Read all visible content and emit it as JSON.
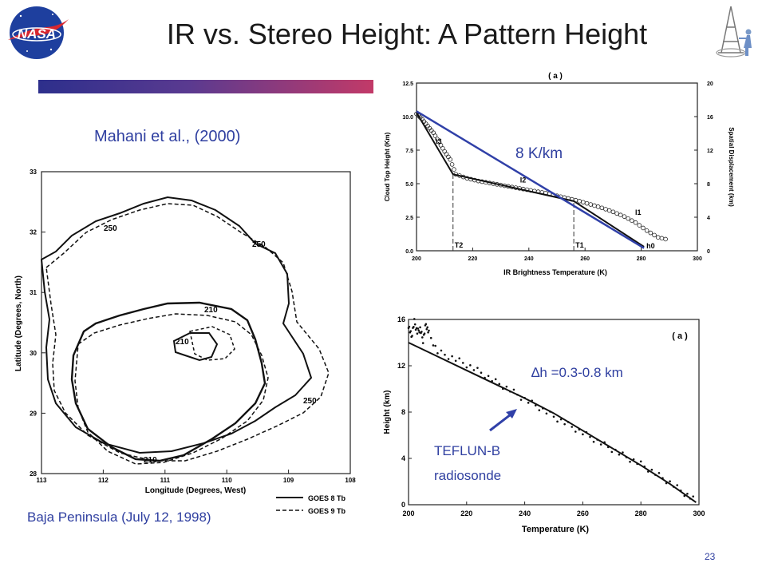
{
  "slide": {
    "title": "IR vs. Stereo Height: A Pattern Height",
    "citation": "Mahani et al., (2000)",
    "caption": "Baja Peninsula (July 12, 1998)",
    "page_number": "23",
    "logo_text": "NASA",
    "accent_color": "#2f3fa0"
  },
  "chart_data": [
    {
      "type": "line",
      "panel_label": "( a )",
      "xlabel": "IR Brightness Temperature (K)",
      "ylabel": "Cloud Top Height (Km)",
      "y2label": "Spatial Displacement (km)",
      "xlim": [
        200,
        300
      ],
      "ylim": [
        0,
        12.5
      ],
      "y2lim": [
        0,
        20
      ],
      "xticks": [
        200,
        220,
        240,
        260,
        280,
        300
      ],
      "yticks": [
        0,
        2.5,
        5.0,
        7.5,
        10.0,
        12.5
      ],
      "y2ticks": [
        0,
        4,
        8,
        12,
        16,
        20
      ],
      "annotation": "8 K/km",
      "segment_labels": [
        "l3",
        "l2",
        "l1",
        "h0"
      ],
      "threshold_labels": [
        "T2",
        "T1"
      ],
      "thresholds": [
        213,
        256
      ],
      "series": [
        {
          "name": "observed",
          "x": [
            200,
            202,
            204,
            206,
            208,
            210,
            212,
            214,
            218,
            222,
            226,
            230,
            234,
            238,
            242,
            246,
            250,
            254,
            258,
            262,
            266,
            270,
            274,
            278,
            282,
            286,
            290
          ],
          "y": [
            10.2,
            9.8,
            9.3,
            8.8,
            8.1,
            7.4,
            6.8,
            5.7,
            5.4,
            5.2,
            5.05,
            4.9,
            4.75,
            4.6,
            4.45,
            4.3,
            4.1,
            3.9,
            3.7,
            3.45,
            3.2,
            2.9,
            2.55,
            2.1,
            1.5,
            1.0,
            0.8
          ]
        },
        {
          "name": "fit",
          "x": [
            200,
            213,
            256,
            281
          ],
          "y": [
            10.3,
            5.7,
            3.7,
            0.3
          ]
        },
        {
          "name": "8 K/km",
          "x": [
            200,
            281
          ],
          "y": [
            10.4,
            0.2
          ]
        }
      ]
    },
    {
      "type": "scatter",
      "panel_label": "( a )",
      "xlabel": "Temperature (K)",
      "ylabel": "Height (km)",
      "xlim": [
        200,
        300
      ],
      "ylim": [
        0,
        16
      ],
      "xticks": [
        200,
        220,
        240,
        260,
        280,
        300
      ],
      "yticks": [
        0,
        4,
        8,
        12,
        16
      ],
      "annotation": "∆h =0.3-0.8 km",
      "callout": [
        "TEFLUN-B",
        "radiosonde"
      ],
      "series": [
        {
          "name": "TEFLUN-B radiosonde",
          "x": [
            200,
            210,
            220,
            230,
            240,
            250,
            260,
            270,
            280,
            290,
            299
          ],
          "y": [
            14.0,
            12.8,
            11.6,
            10.4,
            9.2,
            7.9,
            6.4,
            4.9,
            3.4,
            1.8,
            0.2
          ]
        },
        {
          "name": "stereo",
          "x": [
            200,
            201,
            202,
            203,
            204,
            205,
            206,
            207,
            210,
            215,
            220,
            225,
            230,
            235,
            240,
            245,
            250,
            255,
            260,
            265,
            270,
            275,
            280,
            285,
            290,
            295,
            299
          ],
          "y": [
            15.5,
            14.5,
            15.8,
            14.9,
            15.2,
            14.2,
            15.6,
            14.8,
            13.2,
            12.7,
            12.1,
            11.4,
            10.6,
            9.9,
            9.1,
            8.4,
            7.6,
            6.9,
            6.2,
            5.5,
            4.8,
            4.1,
            3.5,
            2.7,
            1.9,
            1.0,
            0.3
          ]
        }
      ]
    },
    {
      "type": "line",
      "xlabel": "Longitude (Degrees, West)",
      "ylabel": "Latitude (Degrees, North)",
      "xlim": [
        113,
        108
      ],
      "ylim": [
        28,
        33
      ],
      "xticks": [
        113,
        112,
        111,
        110,
        109,
        108
      ],
      "yticks": [
        28,
        29,
        30,
        31,
        32,
        33
      ],
      "contour_labels": [
        "250",
        "250",
        "210",
        "210",
        "250",
        "210"
      ],
      "series": [
        {
          "name": "GOES 8 Tb"
        },
        {
          "name": "GOES 9 Tb"
        }
      ]
    }
  ]
}
